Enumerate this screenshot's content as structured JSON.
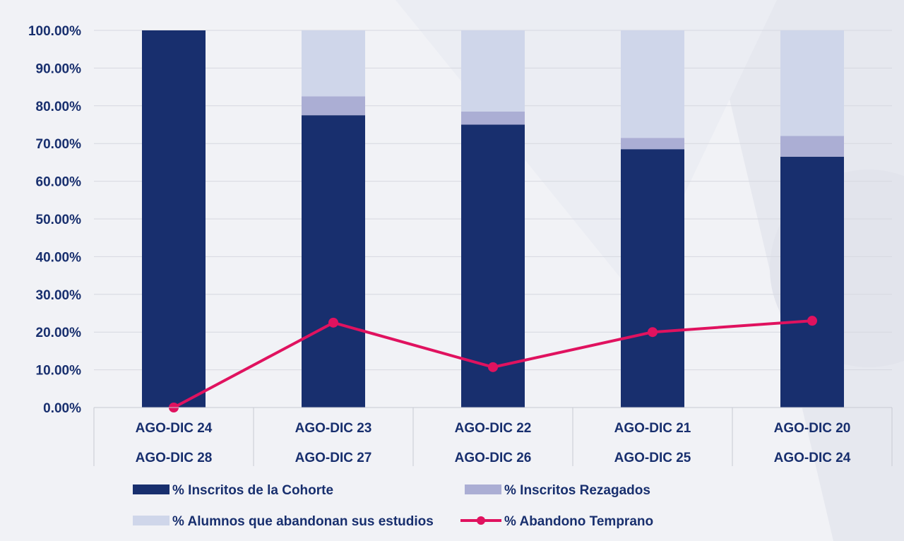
{
  "chart_data": {
    "type": "bar",
    "stacked": true,
    "categories": [
      [
        "AGO-DIC 24",
        "AGO-DIC 28"
      ],
      [
        "AGO-DIC 23",
        "AGO-DIC 27"
      ],
      [
        "AGO-DIC 22",
        "AGO-DIC 26"
      ],
      [
        "AGO-DIC 21",
        "AGO-DIC 25"
      ],
      [
        "AGO-DIC 20",
        "AGO-DIC 24"
      ]
    ],
    "ylim": [
      0,
      100
    ],
    "y_ticks": [
      "0.00%",
      "10.00%",
      "20.00%",
      "30.00%",
      "40.00%",
      "50.00%",
      "60.00%",
      "70.00%",
      "80.00%",
      "90.00%",
      "100.00%"
    ],
    "series": [
      {
        "name": "% Inscritos de la Cohorte",
        "type": "bar",
        "color": "#182f6e",
        "values": [
          100,
          77.5,
          75,
          68.5,
          66.5
        ]
      },
      {
        "name": "% Inscritos Rezagados",
        "type": "bar",
        "color": "#abaed4",
        "values": [
          0,
          5,
          3.5,
          3,
          5.5
        ]
      },
      {
        "name": "% Alumnos que abandonan sus estudios",
        "type": "bar",
        "color": "#cfd6ea",
        "values": [
          0,
          17.5,
          21.5,
          28.5,
          28
        ]
      },
      {
        "name": "% Abandono Temprano",
        "type": "line",
        "color": "#e0125f",
        "values": [
          0,
          22.5,
          10.7,
          20,
          23
        ]
      }
    ],
    "grid": true,
    "legend": "bottom"
  }
}
